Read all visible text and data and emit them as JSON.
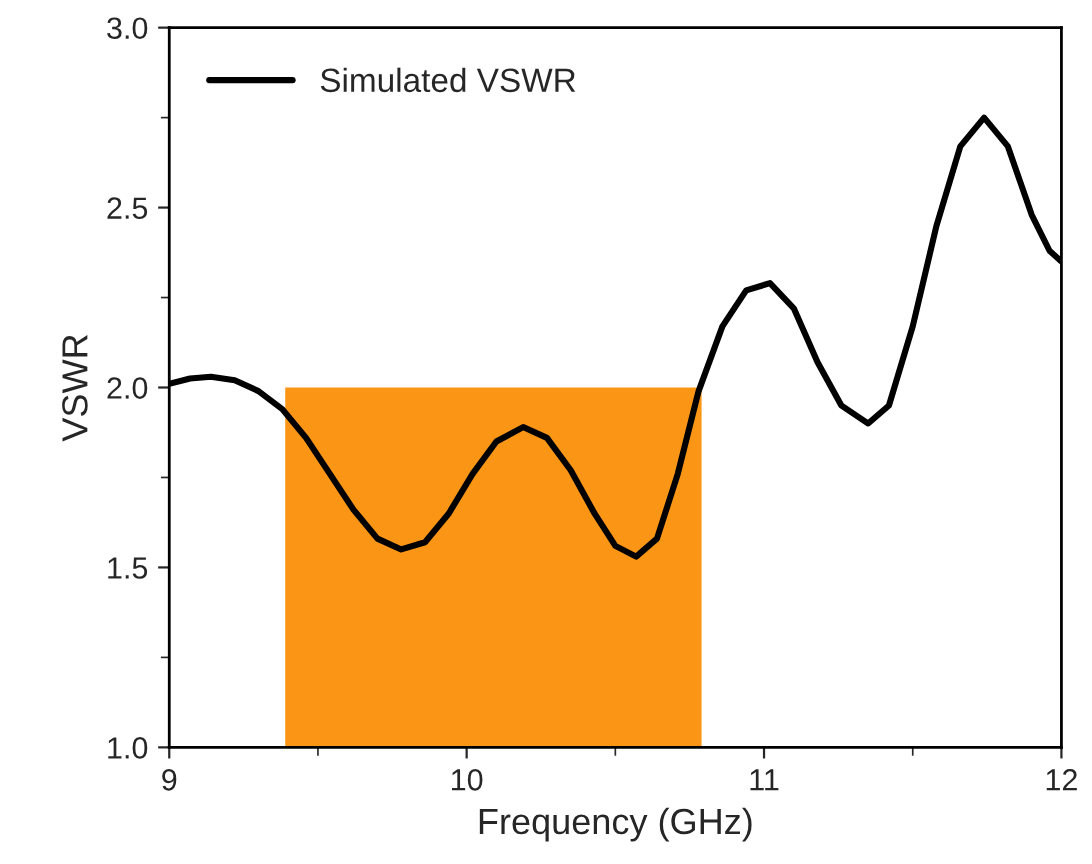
{
  "chart_data": {
    "type": "line",
    "xlabel": "Frequency (GHz)",
    "ylabel": "VSWR",
    "xlim": [
      9,
      12
    ],
    "xticks": [
      9,
      10,
      11,
      12
    ],
    "ylim": [
      1.0,
      3.0
    ],
    "yticks": [
      {
        "value": 1.0,
        "label": "1.0"
      },
      {
        "value": 1.5,
        "label": "1.5"
      },
      {
        "value": 2.0,
        "label": "2.0"
      },
      {
        "value": 2.5,
        "label": "2.5"
      },
      {
        "value": 3.0,
        "label": "3.0"
      }
    ],
    "grid": false,
    "legend": "top left",
    "marker": "none",
    "line_style": "solid",
    "series": [
      {
        "type": "area",
        "color": "#fb9515",
        "x": [
          9.39,
          10.79
        ],
        "values": [
          2.0,
          2.0
        ]
      },
      {
        "name": "Simulated VSWR",
        "color": "#000000",
        "x": [
          9.0,
          9.07,
          9.14,
          9.22,
          9.3,
          9.38,
          9.46,
          9.54,
          9.62,
          9.7,
          9.78,
          9.86,
          9.94,
          10.02,
          10.1,
          10.19,
          10.27,
          10.35,
          10.43,
          10.5,
          10.57,
          10.64,
          10.71,
          10.78,
          10.86,
          10.94,
          11.02,
          11.1,
          11.18,
          11.26,
          11.35,
          11.42,
          11.5,
          11.58,
          11.66,
          11.74,
          11.82,
          11.9,
          11.96,
          12.0
        ],
        "values": [
          2.01,
          2.025,
          2.03,
          2.02,
          1.99,
          1.94,
          1.86,
          1.76,
          1.66,
          1.58,
          1.55,
          1.57,
          1.65,
          1.76,
          1.85,
          1.89,
          1.86,
          1.77,
          1.65,
          1.56,
          1.53,
          1.58,
          1.76,
          1.99,
          2.17,
          2.27,
          2.29,
          2.22,
          2.07,
          1.95,
          1.9,
          1.95,
          2.17,
          2.45,
          2.67,
          2.75,
          2.67,
          2.48,
          2.38,
          2.35
        ]
      }
    ]
  }
}
